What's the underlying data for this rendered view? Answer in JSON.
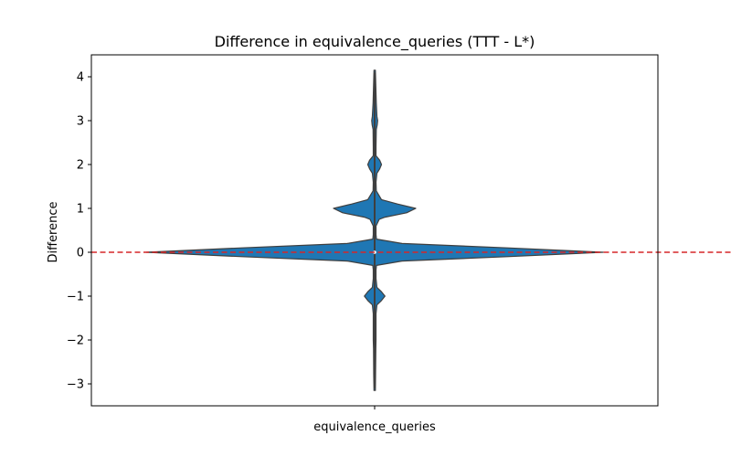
{
  "chart_data": {
    "type": "violin",
    "title": "Difference in equivalence_queries (TTT - L*)",
    "xlabel": "",
    "ylabel": "Difference",
    "categories": [
      "equivalence_queries"
    ],
    "ylim": [
      -3.5,
      4.5
    ],
    "yticks": [
      -3,
      -2,
      -1,
      0,
      1,
      2,
      3,
      4
    ],
    "ytick_labels": [
      "−3",
      "−2",
      "−1",
      "0",
      "1",
      "2",
      "3",
      "4"
    ],
    "grid": false,
    "reference_line": {
      "y": 0,
      "style": "dashed",
      "color": "#d62728"
    },
    "colors": {
      "violin_fill": "#1f77b4",
      "violin_edge": "#3f3f3f",
      "inner_line": "#3f3f3f"
    },
    "density_profile": {
      "note_units": "y in data units; width as fraction of max half-width",
      "y": [
        -3.15,
        -2.8,
        -2.2,
        -2.0,
        -1.8,
        -1.4,
        -1.2,
        -1.1,
        -1.0,
        -0.9,
        -0.8,
        -0.6,
        -0.4,
        -0.3,
        -0.2,
        -0.1,
        0.0,
        0.1,
        0.2,
        0.3,
        0.4,
        0.6,
        0.75,
        0.8,
        0.9,
        1.0,
        1.1,
        1.2,
        1.4,
        1.6,
        1.8,
        1.9,
        2.0,
        2.1,
        2.2,
        2.4,
        2.8,
        2.9,
        3.0,
        3.1,
        3.4,
        4.15
      ],
      "width": [
        0.003,
        0.004,
        0.005,
        0.006,
        0.006,
        0.006,
        0.01,
        0.03,
        0.045,
        0.03,
        0.01,
        0.006,
        0.006,
        0.008,
        0.12,
        0.58,
        1.0,
        0.58,
        0.12,
        0.008,
        0.006,
        0.006,
        0.02,
        0.045,
        0.14,
        0.18,
        0.1,
        0.03,
        0.007,
        0.006,
        0.01,
        0.022,
        0.03,
        0.022,
        0.006,
        0.006,
        0.007,
        0.011,
        0.013,
        0.01,
        0.007,
        0.003
      ]
    },
    "median": 0,
    "iqr": [
      0,
      0
    ],
    "whiskers": [
      -3.1,
      4.1
    ]
  }
}
